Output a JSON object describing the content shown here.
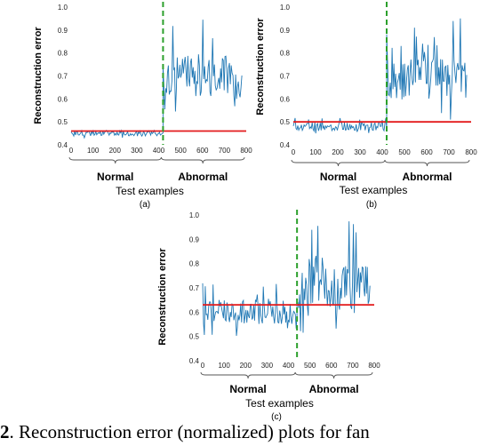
{
  "chart_data": [
    {
      "type": "line",
      "panel_label": "(a)",
      "ylabel": "Reconstruction error",
      "xlabel": "Test examples",
      "xlim": [
        0,
        800
      ],
      "ylim": [
        0.4,
        1.0
      ],
      "xticks": [
        0,
        100,
        200,
        300,
        400,
        500,
        600,
        700,
        800
      ],
      "yticks": [
        0.4,
        0.5,
        0.6,
        0.7,
        0.8,
        0.9,
        1.0
      ],
      "ytick_labels": [
        "0.4",
        "0.5",
        "0.6",
        "0.7",
        "0.8",
        "0.9",
        "1.0"
      ],
      "groups": [
        {
          "label": "Normal",
          "range": [
            0,
            420
          ]
        },
        {
          "label": "Abnormal",
          "range": [
            420,
            800
          ]
        }
      ],
      "threshold": 0.46,
      "boundary_x": 420,
      "series_color": "#1f77b4",
      "threshold_color": "#e31a1c",
      "boundary_color": "#2ca02c",
      "segments": [
        {
          "x_start": 0,
          "x_end": 420,
          "n": 105,
          "center": 0.45,
          "spread": 0.012,
          "spike_max": 0.47,
          "min": 0.43
        },
        {
          "x_start": 420,
          "x_end": 780,
          "n": 90,
          "center": 0.7,
          "spread": 0.1,
          "spike_max": 0.97,
          "min": 0.53
        }
      ]
    },
    {
      "type": "line",
      "panel_label": "(b)",
      "ylabel": "Reconstruction error",
      "xlabel": "Test examples",
      "xlim": [
        0,
        800
      ],
      "ylim": [
        0.4,
        1.0
      ],
      "xticks": [
        0,
        100,
        200,
        300,
        400,
        500,
        600,
        700,
        800
      ],
      "yticks": [
        0.4,
        0.5,
        0.6,
        0.7,
        0.8,
        0.9,
        1.0
      ],
      "ytick_labels": [
        "0.4",
        "0.5",
        "0.6",
        "0.7",
        "0.8",
        "0.9",
        "1.0"
      ],
      "groups": [
        {
          "label": "Normal",
          "range": [
            0,
            420
          ]
        },
        {
          "label": "Abnormal",
          "range": [
            420,
            800
          ]
        }
      ],
      "threshold": 0.5,
      "boundary_x": 420,
      "series_color": "#1f77b4",
      "threshold_color": "#e31a1c",
      "boundary_color": "#2ca02c",
      "segments": [
        {
          "x_start": 0,
          "x_end": 420,
          "n": 105,
          "center": 0.48,
          "spread": 0.02,
          "spike_max": 0.53,
          "min": 0.44
        },
        {
          "x_start": 420,
          "x_end": 780,
          "n": 90,
          "center": 0.69,
          "spread": 0.09,
          "spike_max": 0.96,
          "min": 0.5
        }
      ]
    },
    {
      "type": "line",
      "panel_label": "(c)",
      "ylabel": "Reconstruction error",
      "xlabel": "Test examples",
      "xlim": [
        0,
        800
      ],
      "ylim": [
        0.4,
        1.0
      ],
      "xticks": [
        0,
        100,
        200,
        300,
        400,
        500,
        600,
        700,
        800
      ],
      "yticks": [
        0.4,
        0.5,
        0.6,
        0.7,
        0.8,
        0.9,
        1.0
      ],
      "ytick_labels": [
        "0.4",
        "0.5",
        "0.6",
        "0.7",
        "0.8",
        "0.9",
        "1.0"
      ],
      "groups": [
        {
          "label": "Normal",
          "range": [
            0,
            440
          ]
        },
        {
          "label": "Abnormal",
          "range": [
            440,
            800
          ]
        }
      ],
      "threshold": 0.63,
      "boundary_x": 440,
      "series_color": "#1f77b4",
      "threshold_color": "#e31a1c",
      "boundary_color": "#2ca02c",
      "segments": [
        {
          "x_start": 0,
          "x_end": 440,
          "n": 110,
          "center": 0.6,
          "spread": 0.05,
          "spike_max": 0.72,
          "min": 0.49
        },
        {
          "x_start": 440,
          "x_end": 780,
          "n": 85,
          "center": 0.7,
          "spread": 0.09,
          "spike_max": 0.99,
          "min": 0.5
        }
      ]
    }
  ],
  "caption": {
    "prefix": "2",
    "text": ".  Reconstruction error (normalized) plots for fan"
  }
}
